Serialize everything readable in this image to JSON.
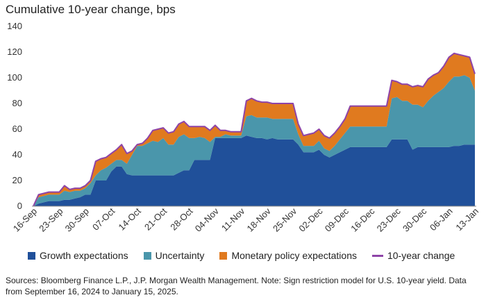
{
  "chart_data": {
    "type": "area",
    "title": "Cumulative 10-year change, bps",
    "xlabel": "",
    "ylabel": "",
    "ylim": [
      0,
      140
    ],
    "yticks": [
      0,
      20,
      40,
      60,
      80,
      100,
      120,
      140
    ],
    "grid": false,
    "legend_position": "bottom",
    "x_count": 86,
    "x_tick_labels": [
      {
        "label": "16-Sep",
        "index": 0
      },
      {
        "label": "23-Sep",
        "index": 5
      },
      {
        "label": "30-Sep",
        "index": 10
      },
      {
        "label": "07-Oct",
        "index": 15
      },
      {
        "label": "14-Oct",
        "index": 20
      },
      {
        "label": "21-Oct",
        "index": 25
      },
      {
        "label": "28-Oct",
        "index": 30
      },
      {
        "label": "04-Nov",
        "index": 35
      },
      {
        "label": "11-Nov",
        "index": 40
      },
      {
        "label": "18-Nov",
        "index": 45
      },
      {
        "label": "25-Nov",
        "index": 50
      },
      {
        "label": "02-Dec",
        "index": 55
      },
      {
        "label": "09-Dec",
        "index": 60
      },
      {
        "label": "16-Dec",
        "index": 65
      },
      {
        "label": "23-Dec",
        "index": 70
      },
      {
        "label": "30-Dec",
        "index": 75
      },
      {
        "label": "06-Jan",
        "index": 80
      },
      {
        "label": "13-Jan",
        "index": 85
      }
    ],
    "series": [
      {
        "name": "Growth expectations",
        "color": "#20509a",
        "values": [
          0,
          2,
          3,
          4,
          4,
          4,
          5,
          5,
          6,
          7,
          9,
          9,
          20,
          20,
          20,
          27,
          31,
          31,
          25,
          24,
          24,
          24,
          24,
          24,
          24,
          24,
          24,
          24,
          26,
          28,
          28,
          36,
          36,
          36,
          36,
          53,
          53,
          53,
          53,
          53,
          53,
          55,
          54,
          53,
          53,
          52,
          53,
          52,
          52,
          52,
          52,
          48,
          42,
          42,
          42,
          44,
          40,
          38,
          40,
          42,
          44,
          46,
          46,
          46,
          46,
          46,
          46,
          46,
          46,
          52,
          52,
          52,
          52,
          44,
          46,
          46,
          46,
          46,
          46,
          46,
          46,
          47,
          47,
          48,
          48,
          48
        ]
      },
      {
        "name": "Uncertainty",
        "color": "#4a96ab",
        "values": [
          0,
          5,
          5,
          5,
          5,
          5,
          7,
          6,
          6,
          5,
          5,
          9,
          4,
          8,
          10,
          6,
          5,
          5,
          8,
          16,
          23,
          23,
          25,
          27,
          26,
          29,
          24,
          24,
          28,
          28,
          25,
          17,
          18,
          17,
          14,
          1,
          1,
          3,
          2,
          2,
          2,
          15,
          17,
          16,
          16,
          17,
          15,
          16,
          16,
          16,
          16,
          8,
          5,
          5,
          5,
          7,
          5,
          5,
          7,
          10,
          13,
          16,
          16,
          16,
          16,
          16,
          16,
          16,
          16,
          32,
          33,
          30,
          30,
          35,
          33,
          31,
          36,
          40,
          43,
          46,
          51,
          54,
          54,
          54,
          52,
          42
        ]
      },
      {
        "name": "Monetary policy expectations",
        "color": "#e07a1f",
        "values": [
          0,
          2,
          2,
          2,
          2,
          2,
          4,
          2,
          2,
          2,
          2,
          2,
          11,
          9,
          8,
          8,
          8,
          12,
          8,
          3,
          1,
          2,
          4,
          8,
          10,
          8,
          9,
          10,
          10,
          10,
          9,
          9,
          8,
          9,
          9,
          9,
          5,
          3,
          3,
          3,
          3,
          12,
          13,
          13,
          12,
          12,
          12,
          12,
          12,
          12,
          12,
          8,
          8,
          9,
          10,
          9,
          10,
          10,
          10,
          10,
          11,
          16,
          16,
          16,
          16,
          16,
          16,
          16,
          16,
          14,
          12,
          13,
          13,
          14,
          15,
          16,
          17,
          16,
          15,
          17,
          19,
          18,
          17,
          15,
          16,
          13
        ]
      }
    ],
    "total": {
      "name": "10-year change",
      "color": "#8e44a8"
    }
  },
  "legend": {
    "items": [
      {
        "label": "Growth expectations",
        "color": "#20509a"
      },
      {
        "label": "Uncertainty",
        "color": "#4a96ab"
      },
      {
        "label": "Monetary policy expectations",
        "color": "#e07a1f"
      },
      {
        "label": "10-year change",
        "color": "#8e44a8"
      }
    ]
  },
  "source_note": "Sources: Bloomberg Finance L.P., J.P. Morgan Wealth Management. Note: Sign restriction model for U.S. 10-year yield. Data from September 16, 2024 to January 15, 2025."
}
